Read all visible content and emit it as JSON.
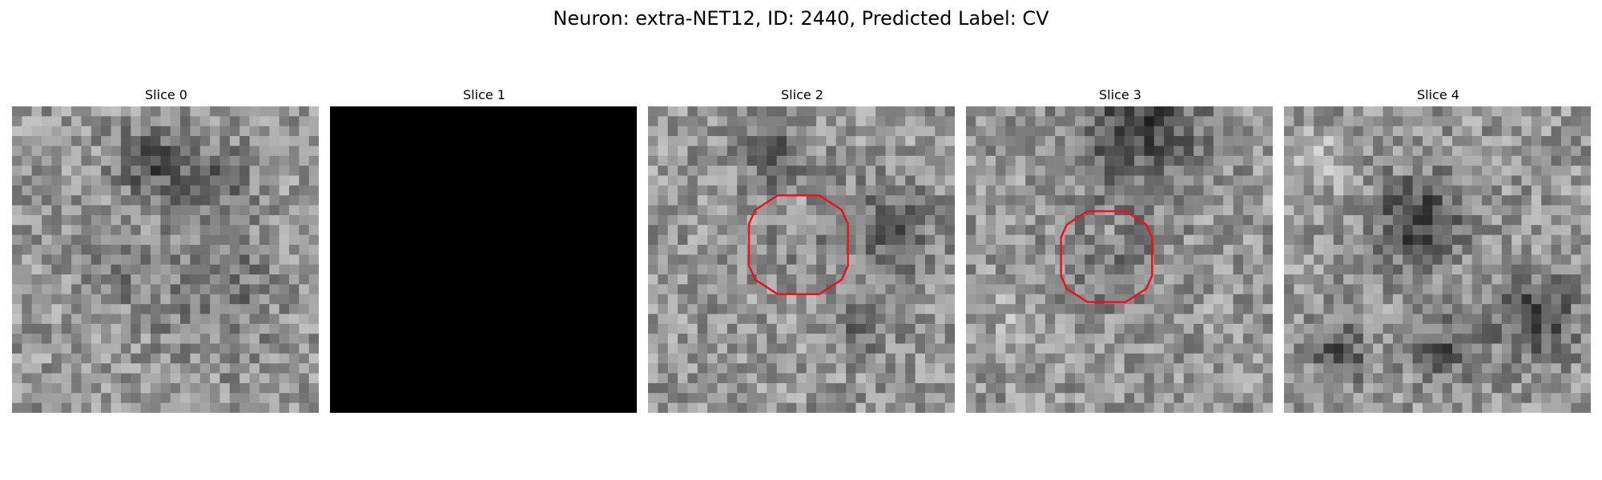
{
  "figure": {
    "title": "Neuron: extra-NET12, ID: 2440, Predicted Label: CV"
  },
  "panels": [
    {
      "title": "Slice 0",
      "kind": "noise",
      "seed": 11,
      "contour": false
    },
    {
      "title": "Slice 1",
      "kind": "black",
      "seed": 0,
      "contour": false
    },
    {
      "title": "Slice 2",
      "kind": "noise",
      "seed": 23,
      "contour": true
    },
    {
      "title": "Slice 3",
      "kind": "noise",
      "seed": 37,
      "contour": true
    },
    {
      "title": "Slice 4",
      "kind": "noise",
      "seed": 53,
      "contour": false
    }
  ],
  "colors": {
    "contour": "#e8141c",
    "background": "#ffffff"
  }
}
